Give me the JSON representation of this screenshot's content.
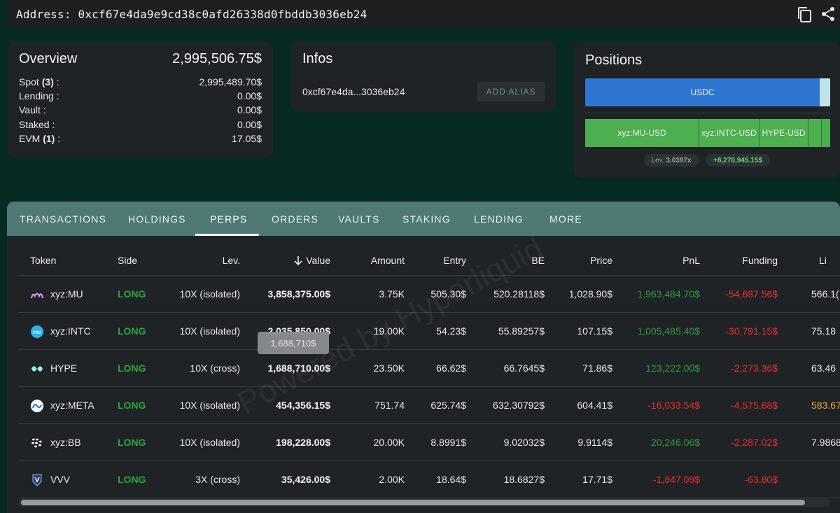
{
  "address_bar": {
    "text": "Address: 0xcf67e4da9e9cd38c0afd26338d0fbddb3036eb24",
    "copy_icon": "copy-icon",
    "share_icon": "share-icon"
  },
  "overview": {
    "title": "Overview",
    "total": "2,995,506.75$",
    "rows": [
      {
        "label": "Spot",
        "count": "(3)",
        "suffix": " :",
        "value": "2,995,489.70$"
      },
      {
        "label": "Lending :",
        "count": "",
        "suffix": "",
        "value": "0.00$"
      },
      {
        "label": "Vault :",
        "count": "",
        "suffix": "",
        "value": "0.00$"
      },
      {
        "label": "Staked :",
        "count": "",
        "suffix": "",
        "value": "0.00$"
      },
      {
        "label": "EVM",
        "count": "(1)",
        "suffix": " :",
        "value": "17.05$"
      }
    ]
  },
  "infos": {
    "title": "Infos",
    "short_address": "0xcf67e4da...3036eb24",
    "add_alias_label": "ADD ALIAS"
  },
  "positions": {
    "title": "Positions",
    "spot_segments": [
      {
        "label": "USDC",
        "color": "#2f76d2"
      },
      {
        "label": "",
        "color": "#bfe3ec"
      }
    ],
    "perp_segments": [
      {
        "label": "xyz:MU-USD",
        "color": "#4caf50"
      },
      {
        "label": "xyz:INTC-USD",
        "color": "#4caf50"
      },
      {
        "label": "HYPE-USD",
        "color": "#4caf50"
      },
      {
        "label": "",
        "color": "#4caf50"
      },
      {
        "label": "",
        "color": "#4caf50"
      }
    ],
    "lev_label": "Lev.",
    "lev_value": "3.0397x",
    "pnl": "+8,270,945.15$"
  },
  "tabs": [
    {
      "label": "TRANSACTIONS",
      "active": false
    },
    {
      "label": "HOLDINGS",
      "active": false
    },
    {
      "label": "PERPS",
      "active": true
    },
    {
      "label": "ORDERS",
      "active": false
    },
    {
      "label": "VAULTS",
      "active": false
    },
    {
      "label": "STAKING",
      "active": false
    },
    {
      "label": "LENDING",
      "active": false
    },
    {
      "label": "MORE",
      "active": false
    }
  ],
  "table": {
    "headers": {
      "token": "Token",
      "side": "Side",
      "lev": "Lev.",
      "value": "Value",
      "amount": "Amount",
      "entry": "Entry",
      "be": "BE",
      "price": "Price",
      "pnl": "PnL",
      "funding": "Funding",
      "liq": "Li"
    },
    "sort_icon": "arrow-down-icon",
    "rows": [
      {
        "token": "xyz:MU",
        "icon": "micron-logo-icon",
        "side": "LONG",
        "lev": "10X (isolated)",
        "value": "3,858,375.00$",
        "amount": "3.75K",
        "entry": "505.30$",
        "be": "520.28118$",
        "price": "1,028.90$",
        "pnl": "1,963,484.70$",
        "pnl_sign": "pos",
        "funding": "-54,687.56$",
        "liq": "566.1(",
        "liq_style": "white"
      },
      {
        "token": "xyz:INTC",
        "icon": "intel-logo-icon",
        "side": "LONG",
        "lev": "10X (isolated)",
        "value": "2,035,850.00$",
        "amount": "19.00K",
        "entry": "54.23$",
        "be": "55.89257$",
        "price": "107.15$",
        "pnl": "1,005,485.40$",
        "pnl_sign": "pos",
        "funding": "-30,791.15$",
        "liq": "75.18",
        "liq_style": "white"
      },
      {
        "token": "HYPE",
        "icon": "hyperliquid-logo-icon",
        "side": "LONG",
        "lev": "10X (cross)",
        "value": "1,688,710.00$",
        "amount": "23.50K",
        "entry": "66.62$",
        "be": "66.7645$",
        "price": "71.86$",
        "pnl": "123,222.00$",
        "pnl_sign": "pos",
        "funding": "-2,273.36$",
        "liq": "63.46",
        "liq_style": "white"
      },
      {
        "token": "xyz:META",
        "icon": "meta-logo-icon",
        "side": "LONG",
        "lev": "10X (isolated)",
        "value": "454,356.15$",
        "amount": "751.74",
        "entry": "625.74$",
        "be": "632.30792$",
        "price": "604.41$",
        "pnl": "-16,033.54$",
        "pnl_sign": "neg",
        "funding": "-4,575.68$",
        "liq": "583.67",
        "liq_style": "orange"
      },
      {
        "token": "xyz:BB",
        "icon": "blackberry-logo-icon",
        "side": "LONG",
        "lev": "10X (isolated)",
        "value": "198,228.00$",
        "amount": "20.00K",
        "entry": "8.8991$",
        "be": "9.02032$",
        "price": "9.9114$",
        "pnl": "20,246.06$",
        "pnl_sign": "pos",
        "funding": "-2,287.02$",
        "liq": "7.9868",
        "liq_style": "white"
      },
      {
        "token": "VVV",
        "icon": "venice-logo-icon",
        "side": "LONG",
        "lev": "3X (cross)",
        "value": "35,426.00$",
        "amount": "2.00K",
        "entry": "18.64$",
        "be": "18.6827$",
        "price": "17.71$",
        "pnl": "-1,847.09$",
        "pnl_sign": "neg",
        "funding": "-63.80$",
        "liq": "",
        "liq_style": "white"
      }
    ],
    "tooltip": "1,688,710$",
    "watermark": "Powered by Hyperliquid"
  }
}
